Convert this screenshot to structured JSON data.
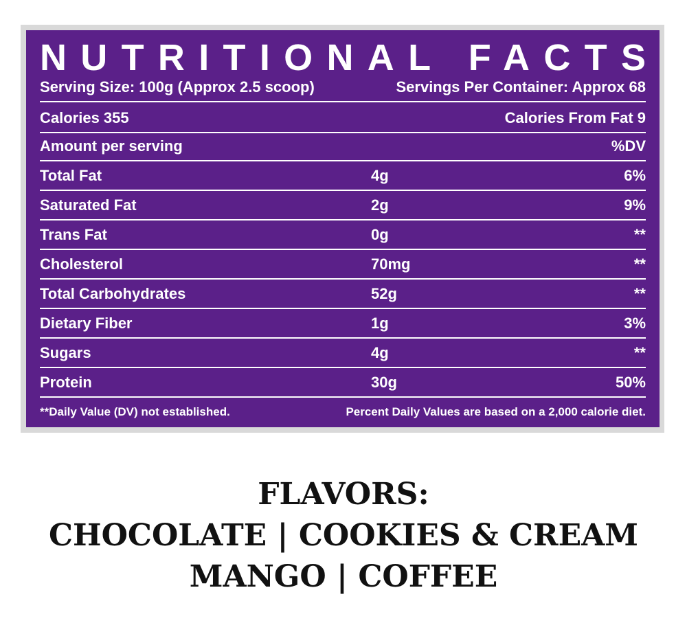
{
  "header": {
    "title": "NUTRITIONAL FACTS",
    "serving_size": "Serving Size: 100g (Approx 2.5 scoop)",
    "servings_per_container": "Servings Per Container: Approx 68"
  },
  "calories": {
    "left": "Calories 355",
    "right": "Calories From Fat 9"
  },
  "table": {
    "header": [
      "Amount per serving",
      "%DV"
    ],
    "rows": [
      [
        "Total Fat",
        "4g",
        "6%"
      ],
      [
        "Saturated Fat",
        "2g",
        "9%"
      ],
      [
        "Trans Fat",
        "0g",
        "**"
      ],
      [
        "Cholesterol",
        "70mg",
        "**"
      ],
      [
        "Total Carbohydrates",
        "52g",
        "**"
      ],
      [
        "Dietary Fiber",
        "1g",
        "3%"
      ],
      [
        "Sugars",
        "4g",
        "**"
      ],
      [
        "Protein",
        "30g",
        "50%"
      ]
    ]
  },
  "footer": {
    "left": "**Daily Value (DV) not established.",
    "right": "Percent Daily Values are based on a 2,000 calorie diet."
  },
  "flavors": {
    "lines": [
      "FLAVORS:",
      "CHOCOLATE | COOKIES & CREAM",
      "MANGO | COFFEE"
    ]
  }
}
